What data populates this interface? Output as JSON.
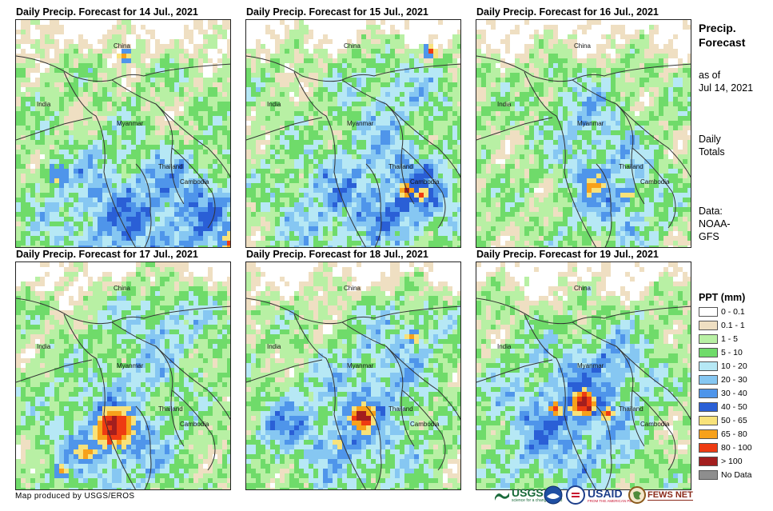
{
  "panels": [
    {
      "title": "Daily Precip. Forecast for 14 Jul., 2021",
      "labels": {
        "china": "China",
        "india": "India",
        "myanmar": "Myanmar",
        "thailand": "Thailand",
        "cambodia": "Cambodia"
      }
    },
    {
      "title": "Daily Precip. Forecast for 15 Jul., 2021",
      "labels": {
        "china": "China",
        "india": "India",
        "myanmar": "Myanmar",
        "thailand": "Thailand",
        "cambodia": "Cambodia"
      }
    },
    {
      "title": "Daily Precip. Forecast for 16 Jul., 2021",
      "labels": {
        "china": "China",
        "india": "India",
        "myanmar": "Myanmar",
        "thailand": "Thailand",
        "cambodia": "Cambodia"
      }
    },
    {
      "title": "Daily Precip. Forecast for 17 Jul., 2021",
      "labels": {
        "china": "China",
        "india": "India",
        "myanmar": "Myanmar",
        "thailand": "Thailand",
        "cambodia": "Cambodia"
      }
    },
    {
      "title": "Daily Precip. Forecast for 18 Jul., 2021",
      "labels": {
        "china": "China",
        "india": "India",
        "myanmar": "Myanmar",
        "thailand": "Thailand",
        "cambodia": "Cambodia"
      }
    },
    {
      "title": "Daily Precip. Forecast for 19 Jul., 2021",
      "labels": {
        "china": "China",
        "india": "India",
        "myanmar": "Myanmar",
        "thailand": "Thailand",
        "cambodia": "Cambodia"
      }
    }
  ],
  "sidebar": {
    "title_line1": "Precip.",
    "title_line2": "Forecast",
    "asof_line1": "as of",
    "asof_line2": "Jul 14, 2021",
    "totals_line1": "Daily",
    "totals_line2": "Totals",
    "data_line1": "Data:",
    "data_line2": "NOAA-",
    "data_line3": "GFS"
  },
  "legend": {
    "title": "PPT (mm)",
    "classes": [
      {
        "label": "0 - 0.1",
        "color": "#ffffff"
      },
      {
        "label": "0.1 - 1",
        "color": "#efdfc2"
      },
      {
        "label": "1 - 5",
        "color": "#b8f0a4"
      },
      {
        "label": "5 - 10",
        "color": "#6fdb6a"
      },
      {
        "label": "10 - 20",
        "color": "#b6e8f5"
      },
      {
        "label": "20 - 30",
        "color": "#86c7f2"
      },
      {
        "label": "30 - 40",
        "color": "#4f95ea"
      },
      {
        "label": "40 - 50",
        "color": "#2a5fd6"
      },
      {
        "label": "50 - 65",
        "color": "#f8e27a"
      },
      {
        "label": "65 - 80",
        "color": "#f7a11b"
      },
      {
        "label": "80 - 100",
        "color": "#ee3b12"
      },
      {
        "label": "> 100",
        "color": "#a31e1e"
      },
      {
        "label": "No Data",
        "color": "#8e8e8e"
      }
    ]
  },
  "footer": {
    "credit": "Map produced by USGS/EROS",
    "logos": {
      "usgs": "USGS",
      "usgs_tag": "science for a changing world",
      "usaid": "USAID",
      "usaid_tag": "FROM THE AMERICAN PEOPLE",
      "fewsnet": "FEWS NET"
    }
  }
}
